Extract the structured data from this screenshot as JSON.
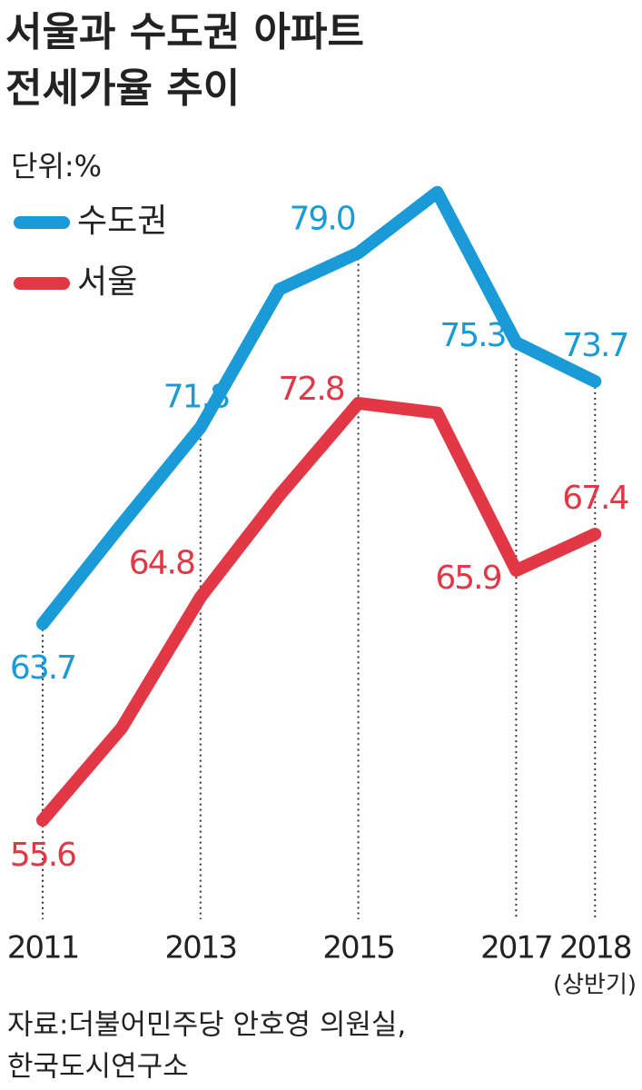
{
  "chart_data": {
    "type": "line",
    "title": [
      "서울과 수도권 아파트",
      "전세가율 추이"
    ],
    "unit": "단위:%",
    "categories": [
      "2011",
      null,
      "2013",
      null,
      "2015",
      null,
      "2017",
      "2018"
    ],
    "x_note": "(상반기)",
    "series": [
      {
        "name": "수도권",
        "color": "#1a9ad6",
        "values": [
          63.7,
          67.8,
          71.8,
          77.5,
          79.0,
          81.5,
          75.3,
          73.7
        ],
        "value_labels": [
          "63.7",
          null,
          "71.8",
          null,
          "79.0",
          null,
          "75.3",
          "73.7"
        ]
      },
      {
        "name": "서울",
        "color": "#e23744",
        "values": [
          55.6,
          59.4,
          64.8,
          69.0,
          72.8,
          72.4,
          65.9,
          67.4
        ],
        "value_labels": [
          "55.6",
          null,
          "64.8",
          null,
          "72.8",
          null,
          "65.9",
          "67.4"
        ]
      }
    ],
    "ylim": [
      52,
      84
    ],
    "source": [
      "자료:더불어민주당 안호영 의원실,",
      "한국도시연구소"
    ]
  }
}
